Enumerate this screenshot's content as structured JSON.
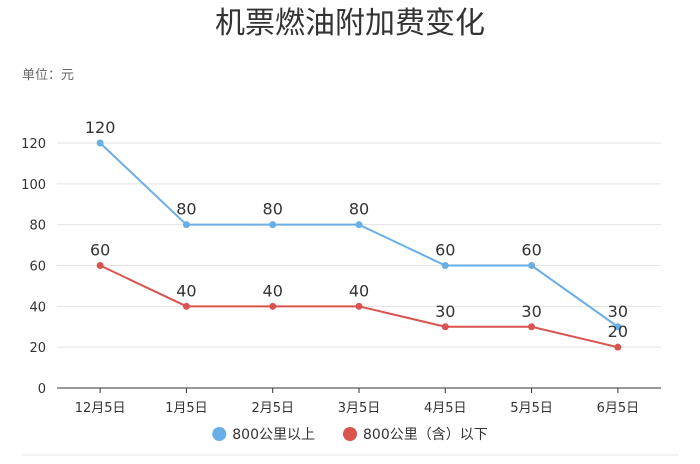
{
  "chart_data": {
    "type": "line",
    "title": "机票燃油附加费变化",
    "unit_label": "单位：元",
    "categories": [
      "12月5日",
      "1月5日",
      "2月5日",
      "3月5日",
      "4月5日",
      "5月5日",
      "6月5日"
    ],
    "ylim": [
      0,
      120
    ],
    "yticks": [
      0,
      20,
      40,
      60,
      80,
      100,
      120
    ],
    "grid": true,
    "legend_position": "bottom",
    "series": [
      {
        "name": "800公里以上",
        "color": "#6aaee8",
        "values": [
          120,
          80,
          80,
          80,
          60,
          60,
          30
        ]
      },
      {
        "name": "800公里（含）以下",
        "color": "#d9534f",
        "values": [
          60,
          40,
          40,
          40,
          30,
          30,
          20
        ]
      }
    ]
  }
}
